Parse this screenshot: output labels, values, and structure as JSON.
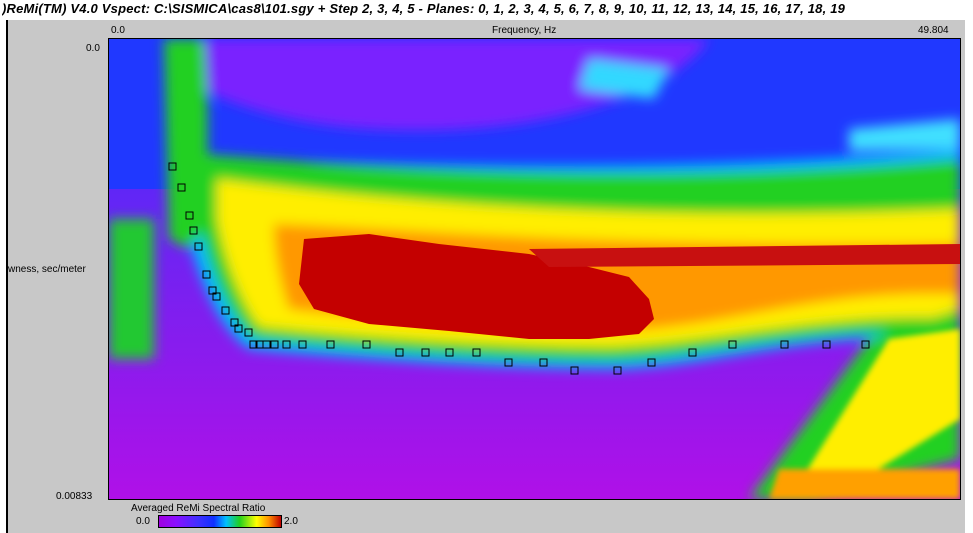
{
  "window": {
    "title": ")ReMi(TM) V4.0 Vspect: C:\\SISMICA\\cas8\\101.sgy + Step 2, 3, 4, 5 - Planes: 0, 1, 2, 3, 4, 5, 6, 7, 8, 9, 10, 11, 12, 13, 14, 15, 16, 17, 18, 19"
  },
  "axes": {
    "x_label": "Frequency, Hz",
    "x_min": "0.0",
    "x_max": "49.804",
    "y_label": "wness, sec/meter",
    "y_min": "0.0",
    "y_max": "0.00833"
  },
  "colorbar": {
    "title": "Averaged ReMi Spectral Ratio",
    "min_label": "0.0",
    "max_label": "2.0"
  },
  "colors": {
    "background": "#c8c8c8",
    "low": "#a000e0",
    "mid_blue": "#1030ff",
    "cyan": "#00c0ff",
    "green": "#20d020",
    "yellow": "#ffff00",
    "high": "#c00000"
  },
  "picks": {
    "count": 34,
    "marker": "hollow-square"
  }
}
